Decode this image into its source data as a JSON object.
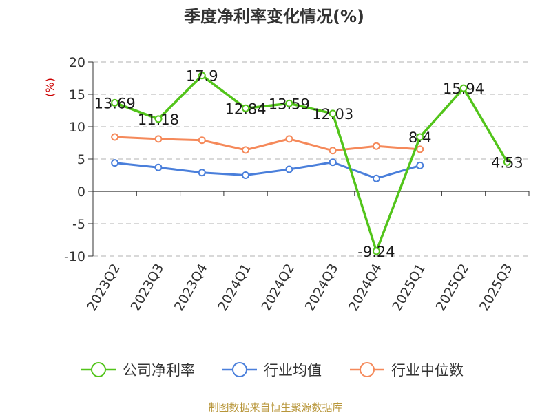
{
  "chart_data": {
    "type": "line",
    "title": "季度净利率变化情况(%)",
    "ylabel": "(%)",
    "categories": [
      "2023Q2",
      "2023Q3",
      "2023Q4",
      "2024Q1",
      "2024Q2",
      "2024Q3",
      "2024Q4",
      "2025Q1",
      "2025Q2",
      "2025Q3"
    ],
    "ylim": [
      -10,
      20
    ],
    "yticks": [
      20,
      15,
      10,
      5,
      0,
      -5,
      -10
    ],
    "grid": true,
    "legend_position": "bottom",
    "series": [
      {
        "name": "公司净利率",
        "color": "#52c41a",
        "values": [
          13.69,
          11.18,
          17.9,
          12.84,
          13.59,
          12.03,
          -9.24,
          8.4,
          15.94,
          4.53
        ],
        "labels": [
          "13.69",
          "11.18",
          "17.9",
          "12.84",
          "13.59",
          "12.03",
          "-9.24",
          "8.4",
          "15.94",
          "4.53"
        ]
      },
      {
        "name": "行业均值",
        "color": "#4a7fdb",
        "values": [
          4.4,
          3.7,
          2.9,
          2.5,
          3.4,
          4.5,
          2.0,
          4.0,
          null,
          null
        ]
      },
      {
        "name": "行业中位数",
        "color": "#f5895a",
        "values": [
          8.4,
          8.1,
          7.9,
          6.4,
          8.1,
          6.3,
          7.0,
          6.5,
          null,
          null
        ]
      }
    ]
  },
  "source": "制图数据来自恒生聚源数据库"
}
